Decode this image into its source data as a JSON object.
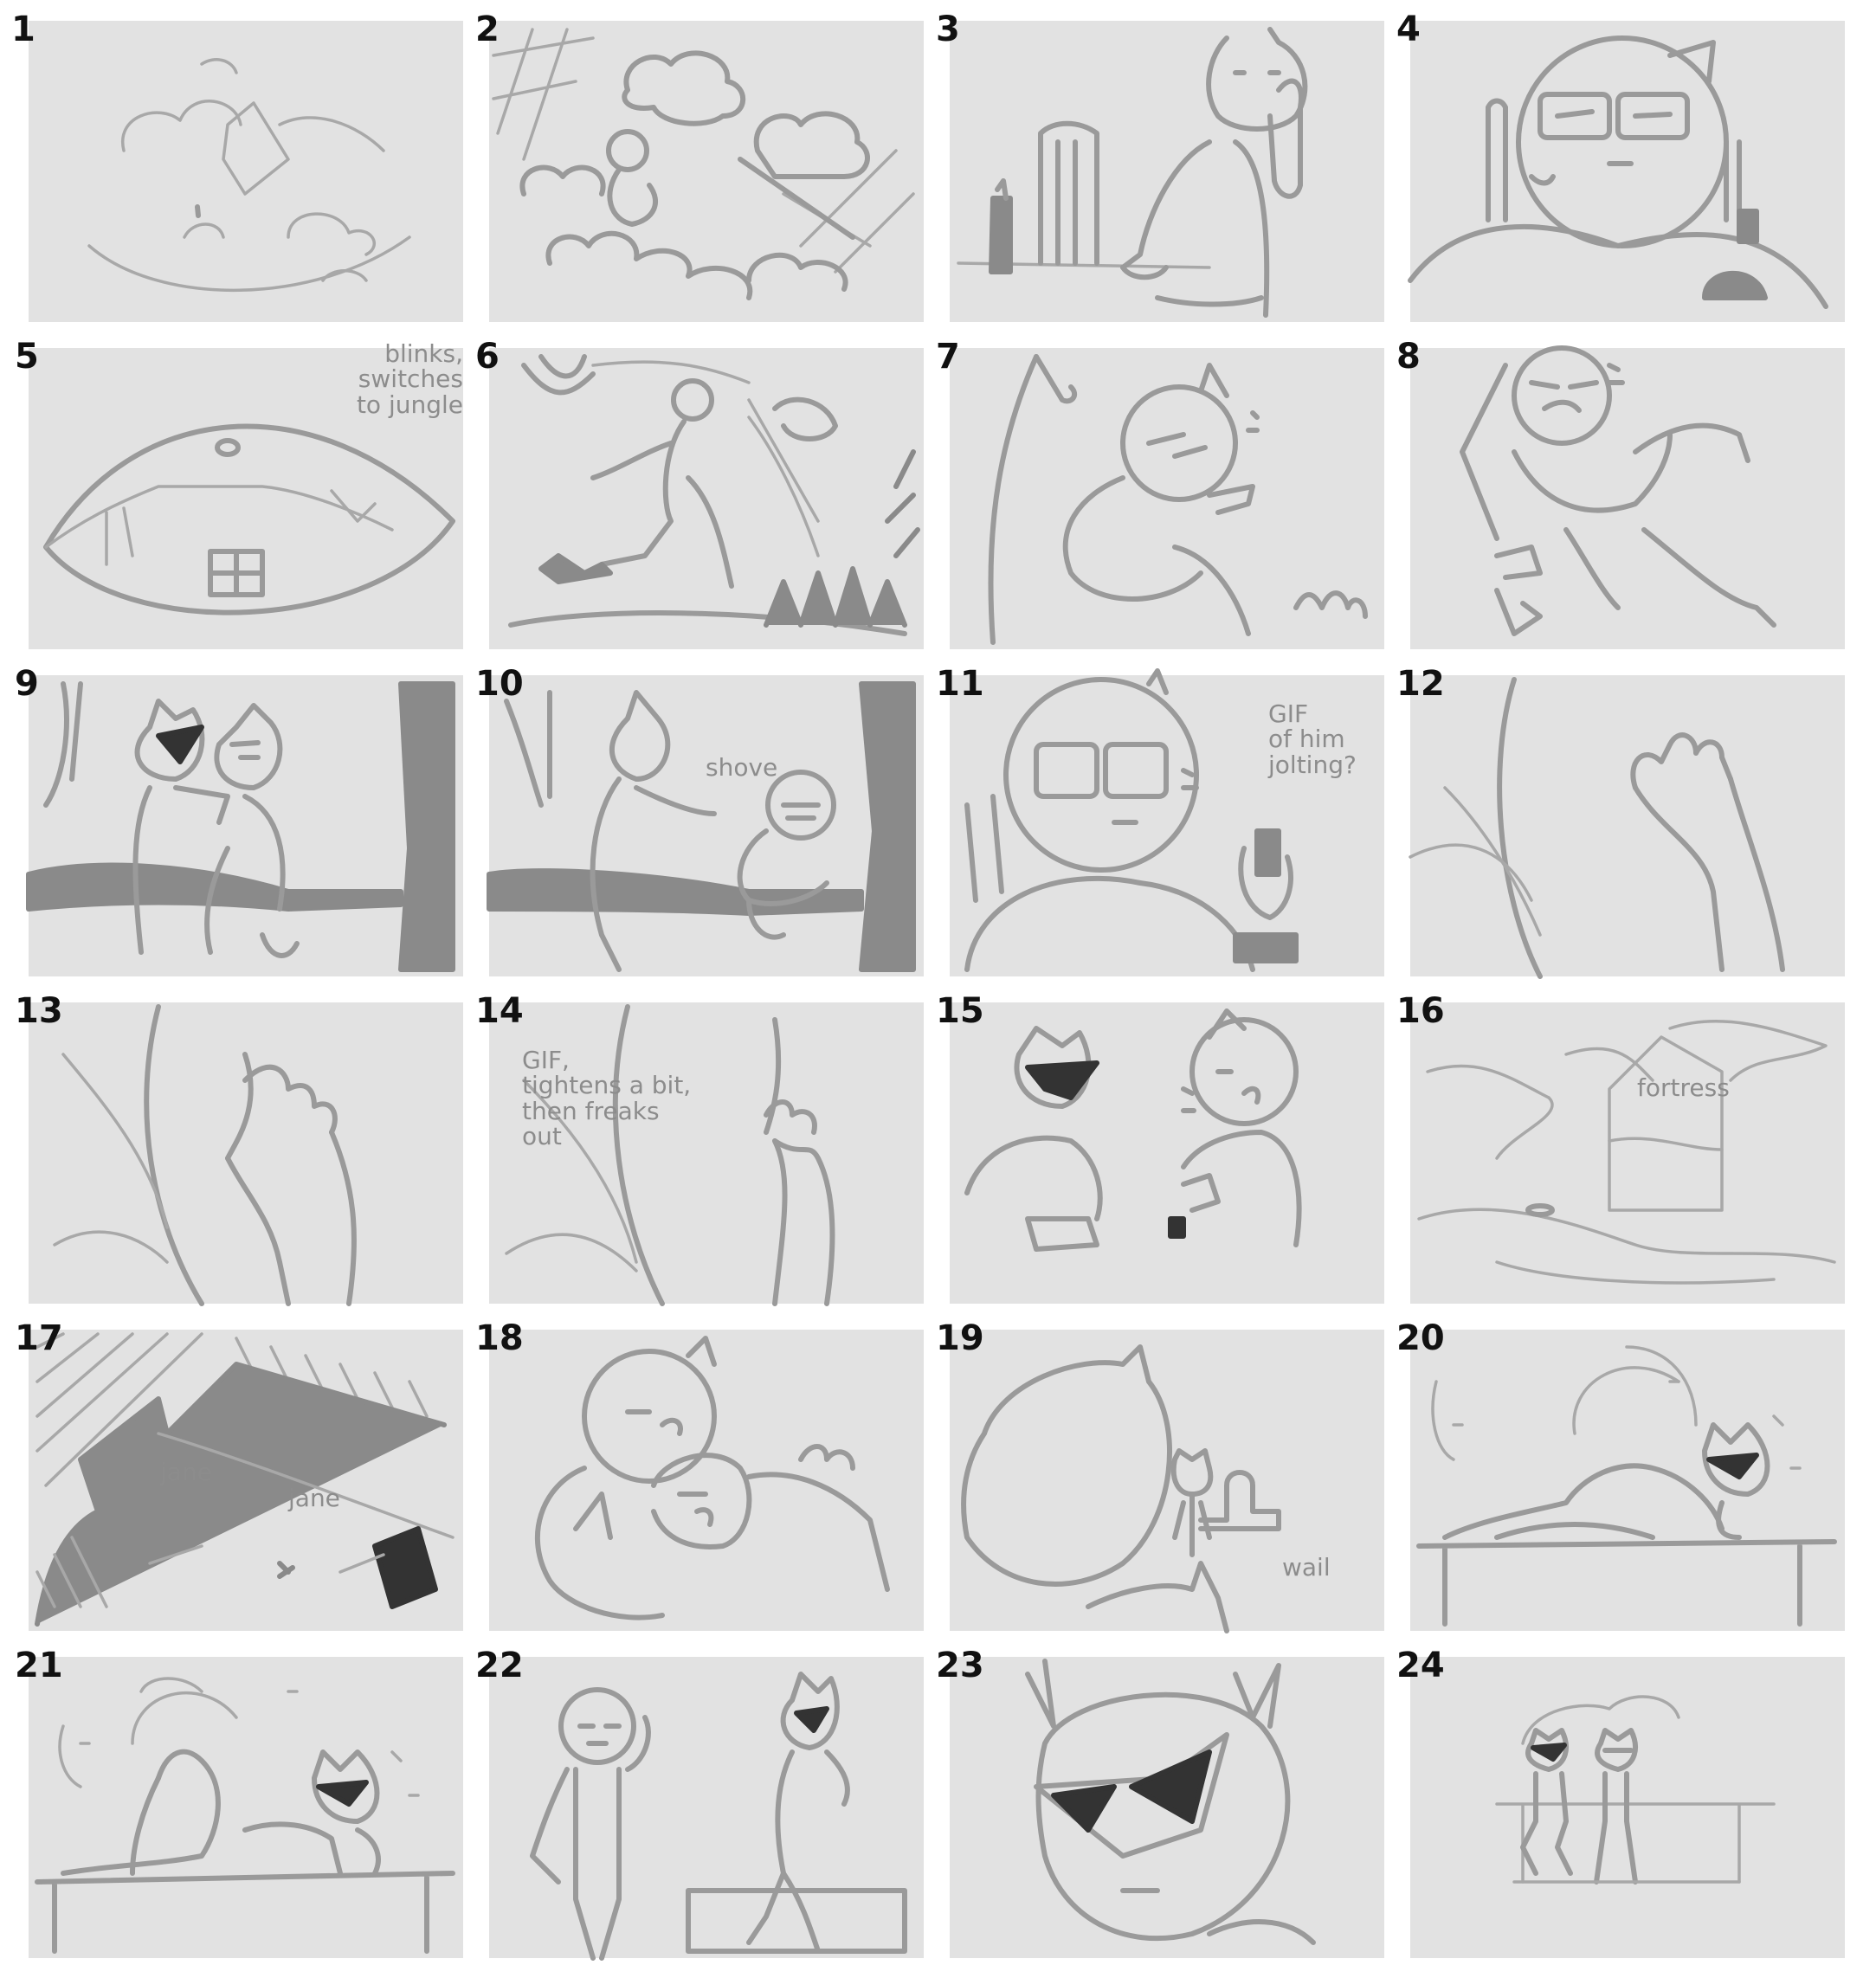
{
  "board": {
    "panel_background": "#e2e2e2",
    "sketch_color": "#9a9a9a",
    "number_color": "#111111"
  },
  "panels": [
    {
      "number": "1"
    },
    {
      "number": "2"
    },
    {
      "number": "3"
    },
    {
      "number": "4"
    },
    {
      "number": "5",
      "note": "blinks, switches\nto jungle"
    },
    {
      "number": "6"
    },
    {
      "number": "7"
    },
    {
      "number": "8"
    },
    {
      "number": "9"
    },
    {
      "number": "10",
      "note": "shove"
    },
    {
      "number": "11",
      "note": "GIF\nof him\njolting?"
    },
    {
      "number": "12"
    },
    {
      "number": "13"
    },
    {
      "number": "14",
      "note": "GIF,\ntightens a bit,\nthen freaks\nout"
    },
    {
      "number": "15"
    },
    {
      "number": "16",
      "note": "fortress"
    },
    {
      "number": "17",
      "note": "jane",
      "note2": "jane"
    },
    {
      "number": "18"
    },
    {
      "number": "19",
      "note": "wail"
    },
    {
      "number": "20"
    },
    {
      "number": "21"
    },
    {
      "number": "22"
    },
    {
      "number": "23"
    },
    {
      "number": "24"
    }
  ]
}
